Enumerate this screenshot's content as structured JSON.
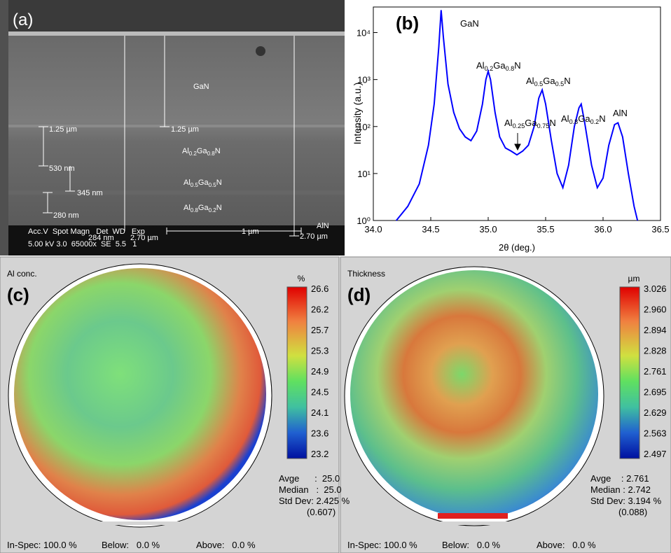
{
  "sem": {
    "label": "(a)",
    "gan": "GaN",
    "al02": [
      "Al",
      "0.2",
      "Ga",
      "0.8",
      "N"
    ],
    "al05": [
      "Al",
      "0.5",
      "Ga",
      "0.5",
      "N"
    ],
    "al08": [
      "Al",
      "0.8",
      "Ga",
      "0.2",
      "N"
    ],
    "aln": "AlN",
    "measures": [
      "1.25 µm",
      "1.25 µm",
      "530 nm",
      "345 nm",
      "280 nm",
      "284 nm",
      "2.70 µm",
      "2.70 µm"
    ],
    "scale_bar": "1 µm",
    "info_header": "Acc.V  Spot Magn   Det  WD   Exp",
    "info_values": "5.00 kV 3.0  65000x  SE  5.5   1"
  },
  "chart_data": {
    "type": "line",
    "label": "(b)",
    "xlabel": "2θ (deg.)",
    "ylabel": "Intensity (a.u.)",
    "log_y": true,
    "x": [
      34.2,
      34.3,
      34.4,
      34.48,
      34.53,
      34.57,
      34.59,
      34.61,
      34.65,
      34.7,
      34.75,
      34.8,
      34.85,
      34.9,
      34.95,
      34.98,
      35.0,
      35.02,
      35.06,
      35.1,
      35.15,
      35.2,
      35.25,
      35.3,
      35.35,
      35.4,
      35.44,
      35.47,
      35.5,
      35.55,
      35.6,
      35.65,
      35.7,
      35.75,
      35.79,
      35.81,
      35.84,
      35.9,
      35.95,
      36.0,
      36.05,
      36.1,
      36.13,
      36.17,
      36.22,
      36.27,
      36.3
    ],
    "series": [
      {
        "color": "#0000ff",
        "values": [
          1,
          2,
          6,
          40,
          300,
          5000,
          30000,
          8000,
          800,
          200,
          90,
          60,
          50,
          80,
          300,
          1000,
          1500,
          1000,
          200,
          60,
          35,
          30,
          25,
          30,
          40,
          100,
          400,
          600,
          300,
          50,
          10,
          5,
          15,
          100,
          250,
          300,
          120,
          15,
          5,
          8,
          40,
          110,
          120,
          60,
          10,
          2,
          1
        ]
      }
    ],
    "xlim": [
      34.0,
      36.5
    ],
    "ylim": [
      1,
      35000
    ],
    "xticks": [
      {
        "value": 34,
        "label": "34.0"
      },
      34.5,
      {
        "value": 35,
        "label": "35.0"
      },
      35.5,
      {
        "value": 36,
        "label": "36.0"
      },
      36.5
    ],
    "yticks": [
      {
        "value": 1,
        "label": "10⁰"
      },
      {
        "value": 10,
        "label": "10¹"
      },
      {
        "value": 100,
        "label": "10²"
      },
      {
        "value": 1000,
        "label": "10³"
      },
      {
        "value": 10000,
        "label": "10⁴"
      }
    ],
    "annotations": [
      [
        "GaN"
      ],
      [
        "Al",
        "0.2",
        "Ga",
        "0.8",
        "N"
      ],
      [
        "Al",
        "0.25",
        "Ga",
        "0.75",
        "N"
      ],
      [
        "Al",
        "0.5",
        "Ga",
        "0.5",
        "N"
      ],
      [
        "Al",
        "0.8",
        "Ga",
        "0.2",
        "N"
      ],
      [
        "AlN"
      ]
    ]
  },
  "maps": [
    {
      "title": "Al conc.",
      "label": "(c)",
      "unit": "%",
      "scale": [
        "26.6",
        "26.2",
        "25.7",
        "25.3",
        "24.9",
        "24.5",
        "24.1",
        "23.6",
        "23.2"
      ],
      "stats": [
        "Avge      :  25.0",
        "Median   :  25.0",
        "Std Dev: 2.425 %",
        "(0.607)"
      ],
      "footer": [
        "In-Spec: 100.0 %",
        "Below:   0.0 %",
        "Above:   0.0 %"
      ]
    },
    {
      "title": "Thickness",
      "label": "(d)",
      "unit": "µm",
      "scale": [
        "3.026",
        "2.960",
        "2.894",
        "2.828",
        "2.761",
        "2.695",
        "2.629",
        "2.563",
        "2.497"
      ],
      "stats": [
        "Avge    : 2.761",
        "Median : 2.742",
        "Std Dev: 3.194 %",
        "(0.088)"
      ],
      "footer": [
        "In-Spec: 100.0 %",
        "Below:   0.0 %",
        "Above:   0.0 %"
      ]
    }
  ]
}
